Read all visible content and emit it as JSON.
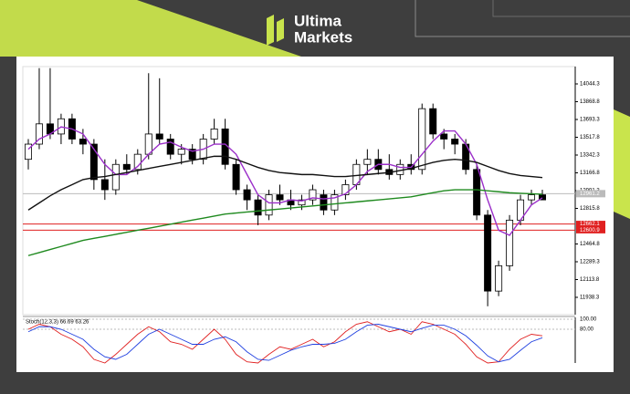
{
  "brand": {
    "line1": "Ultima",
    "line2": "Markets"
  },
  "chart_data": [
    {
      "type": "candlestick",
      "open": [
        13300,
        13450,
        13650,
        13550,
        13700,
        13500,
        13450,
        13100,
        13000,
        13250,
        13200,
        13350,
        13550,
        13500,
        13350,
        13400,
        13300,
        13500,
        13600,
        13250,
        13000,
        12900,
        12750,
        12950,
        12900,
        12850,
        12900,
        12950,
        12800,
        12950,
        13050,
        13250,
        13300,
        13200,
        13150,
        13250,
        13200,
        13800,
        13550,
        13500,
        13450,
        13200,
        12750,
        12000,
        12250,
        12700,
        12900,
        12950
      ],
      "high": [
        13500,
        14200,
        14200,
        13750,
        13750,
        13600,
        13500,
        13300,
        13300,
        13350,
        13400,
        14150,
        14100,
        13550,
        13450,
        13450,
        13550,
        13700,
        13700,
        13300,
        13050,
        12950,
        13000,
        13050,
        13000,
        12950,
        13050,
        13000,
        13000,
        13100,
        13300,
        13400,
        13400,
        13350,
        13300,
        13350,
        13850,
        13850,
        13600,
        13550,
        13500,
        13250,
        12800,
        12300,
        12750,
        12950,
        13000,
        13000
      ],
      "low": [
        13200,
        13400,
        13500,
        13450,
        13450,
        13350,
        13000,
        12900,
        12950,
        13150,
        13150,
        13300,
        13450,
        13300,
        13250,
        13250,
        13250,
        13450,
        13200,
        12950,
        12800,
        12650,
        12700,
        12850,
        12800,
        12800,
        12850,
        12750,
        12750,
        12900,
        13000,
        13150,
        13150,
        13100,
        13100,
        13150,
        13150,
        13500,
        13400,
        13350,
        13150,
        12700,
        11850,
        11950,
        12200,
        12650,
        12850,
        12900
      ],
      "close": [
        13450,
        13650,
        13550,
        13700,
        13500,
        13450,
        13100,
        13000,
        13250,
        13200,
        13350,
        13550,
        13500,
        13350,
        13400,
        13300,
        13500,
        13600,
        13250,
        13000,
        12900,
        12750,
        12950,
        12900,
        12850,
        12900,
        13000,
        12800,
        12950,
        13050,
        13250,
        13300,
        13200,
        13150,
        13250,
        13200,
        13800,
        13550,
        13500,
        13450,
        13200,
        12750,
        12000,
        12250,
        12700,
        12900,
        12950,
        12900
      ],
      "moving_averages": [
        {
          "color": "#9b2fc9",
          "values": [
            13400,
            13500,
            13550,
            13620,
            13600,
            13550,
            13400,
            13250,
            13150,
            13150,
            13230,
            13350,
            13450,
            13470,
            13420,
            13380,
            13400,
            13450,
            13450,
            13350,
            13150,
            12950,
            12870,
            12870,
            12900,
            12890,
            12920,
            12910,
            12920,
            12960,
            13050,
            13180,
            13250,
            13250,
            13220,
            13220,
            13350,
            13480,
            13580,
            13580,
            13450,
            13250,
            12900,
            12600,
            12550,
            12700,
            12850,
            12920
          ]
        },
        {
          "color": "#111111",
          "values": [
            12800,
            12870,
            12940,
            13000,
            13050,
            13100,
            13120,
            13130,
            13150,
            13170,
            13190,
            13210,
            13230,
            13250,
            13270,
            13290,
            13310,
            13330,
            13330,
            13300,
            13260,
            13220,
            13190,
            13170,
            13160,
            13150,
            13150,
            13140,
            13130,
            13130,
            13140,
            13150,
            13160,
            13170,
            13190,
            13210,
            13240,
            13270,
            13290,
            13300,
            13290,
            13270,
            13230,
            13190,
            13160,
            13140,
            13130,
            13120
          ]
        },
        {
          "color": "#1f8a1f",
          "values": [
            12350,
            12380,
            12410,
            12440,
            12470,
            12500,
            12520,
            12540,
            12560,
            12580,
            12600,
            12620,
            12640,
            12660,
            12680,
            12700,
            12720,
            12740,
            12760,
            12770,
            12780,
            12790,
            12800,
            12810,
            12820,
            12830,
            12840,
            12850,
            12860,
            12870,
            12880,
            12890,
            12900,
            12910,
            12920,
            12930,
            12950,
            12970,
            12990,
            13000,
            13000,
            13000,
            12990,
            12980,
            12970,
            12965,
            12960,
            12955
          ]
        }
      ],
      "levels": [
        {
          "value": 12662.1,
          "label": "12662.1",
          "color": "#e02020"
        },
        {
          "value": 12600.9,
          "label": "12600.9",
          "color": "#e02020"
        }
      ],
      "last_price": {
        "value": 12961.2,
        "label": "12961.2",
        "color": "#bbbbbb"
      },
      "ylim": [
        11767.3,
        14215.3
      ],
      "yticks": [
        14044.3,
        13868.8,
        13693.3,
        13517.8,
        13342.3,
        13166.8,
        12991.3,
        12815.8,
        12464.8,
        12289.3,
        12113.8,
        11938.3
      ]
    },
    {
      "type": "line",
      "title": "Stoch(12,3,3) 66.69 63.26",
      "series": [
        {
          "color": "#e02020",
          "values": [
            80,
            90,
            85,
            70,
            60,
            45,
            20,
            10,
            30,
            50,
            70,
            85,
            75,
            55,
            50,
            40,
            60,
            80,
            60,
            30,
            15,
            10,
            30,
            45,
            40,
            50,
            60,
            45,
            55,
            75,
            90,
            95,
            85,
            75,
            80,
            70,
            95,
            90,
            80,
            70,
            50,
            25,
            5,
            15,
            40,
            60,
            70,
            67
          ]
        },
        {
          "color": "#2040e0",
          "values": [
            75,
            85,
            85,
            80,
            70,
            60,
            40,
            25,
            20,
            30,
            50,
            70,
            80,
            70,
            60,
            50,
            50,
            60,
            65,
            55,
            35,
            20,
            18,
            28,
            38,
            45,
            50,
            50,
            52,
            60,
            75,
            88,
            90,
            85,
            80,
            75,
            82,
            88,
            88,
            80,
            67,
            48,
            27,
            15,
            20,
            38,
            55,
            63
          ]
        }
      ],
      "ylim": [
        0,
        100
      ],
      "yticks": [
        {
          "value": 100,
          "label": "100.00"
        },
        {
          "value": 80,
          "label": "80.00"
        }
      ]
    }
  ]
}
